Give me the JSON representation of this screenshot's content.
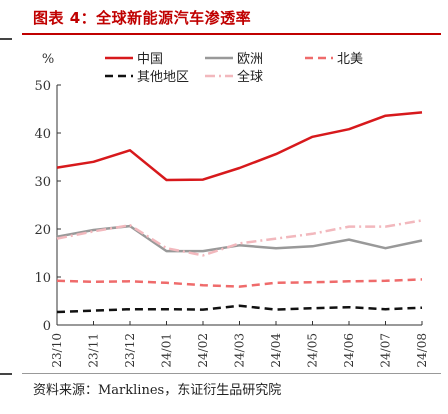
{
  "figure": {
    "title": "图表 4：全球新能源汽车渗透率",
    "source": "资料来源：Marklines，东证衍生品研究院"
  },
  "chart_data": {
    "type": "line",
    "ylabel": "%",
    "xlabel": "",
    "ylim": [
      0,
      50
    ],
    "yticks": [
      0,
      10,
      20,
      30,
      40,
      50
    ],
    "grid": false,
    "legend_position": "top",
    "x": [
      "23/10",
      "23/11",
      "23/12",
      "24/01",
      "24/02",
      "24/03",
      "24/04",
      "24/05",
      "24/06",
      "24/07",
      "24/08"
    ],
    "series": [
      {
        "name": "中国",
        "color": "#d7191c",
        "dash": "solid",
        "values": [
          32.8,
          34.0,
          36.4,
          30.2,
          30.3,
          32.7,
          35.6,
          39.2,
          40.8,
          43.6,
          44.3
        ]
      },
      {
        "name": "欧洲",
        "color": "#999999",
        "dash": "solid",
        "values": [
          18.4,
          19.8,
          20.6,
          15.4,
          15.4,
          16.6,
          16.0,
          16.4,
          17.8,
          16.0,
          17.6
        ]
      },
      {
        "name": "北美",
        "color": "#ef6b6b",
        "dash": "dashed",
        "values": [
          9.2,
          9.0,
          9.1,
          8.8,
          8.3,
          8.0,
          8.8,
          8.9,
          9.1,
          9.2,
          9.5
        ]
      },
      {
        "name": "其他地区",
        "color": "#111111",
        "dash": "dashed",
        "values": [
          2.7,
          3.0,
          3.3,
          3.3,
          3.2,
          4.0,
          3.2,
          3.5,
          3.7,
          3.3,
          3.6
        ]
      },
      {
        "name": "全球",
        "color": "#f2b8bd",
        "dash": "dashdot",
        "values": [
          18.0,
          19.5,
          20.8,
          16.0,
          14.5,
          17.0,
          18.0,
          19.0,
          20.5,
          20.5,
          21.8
        ]
      }
    ]
  }
}
